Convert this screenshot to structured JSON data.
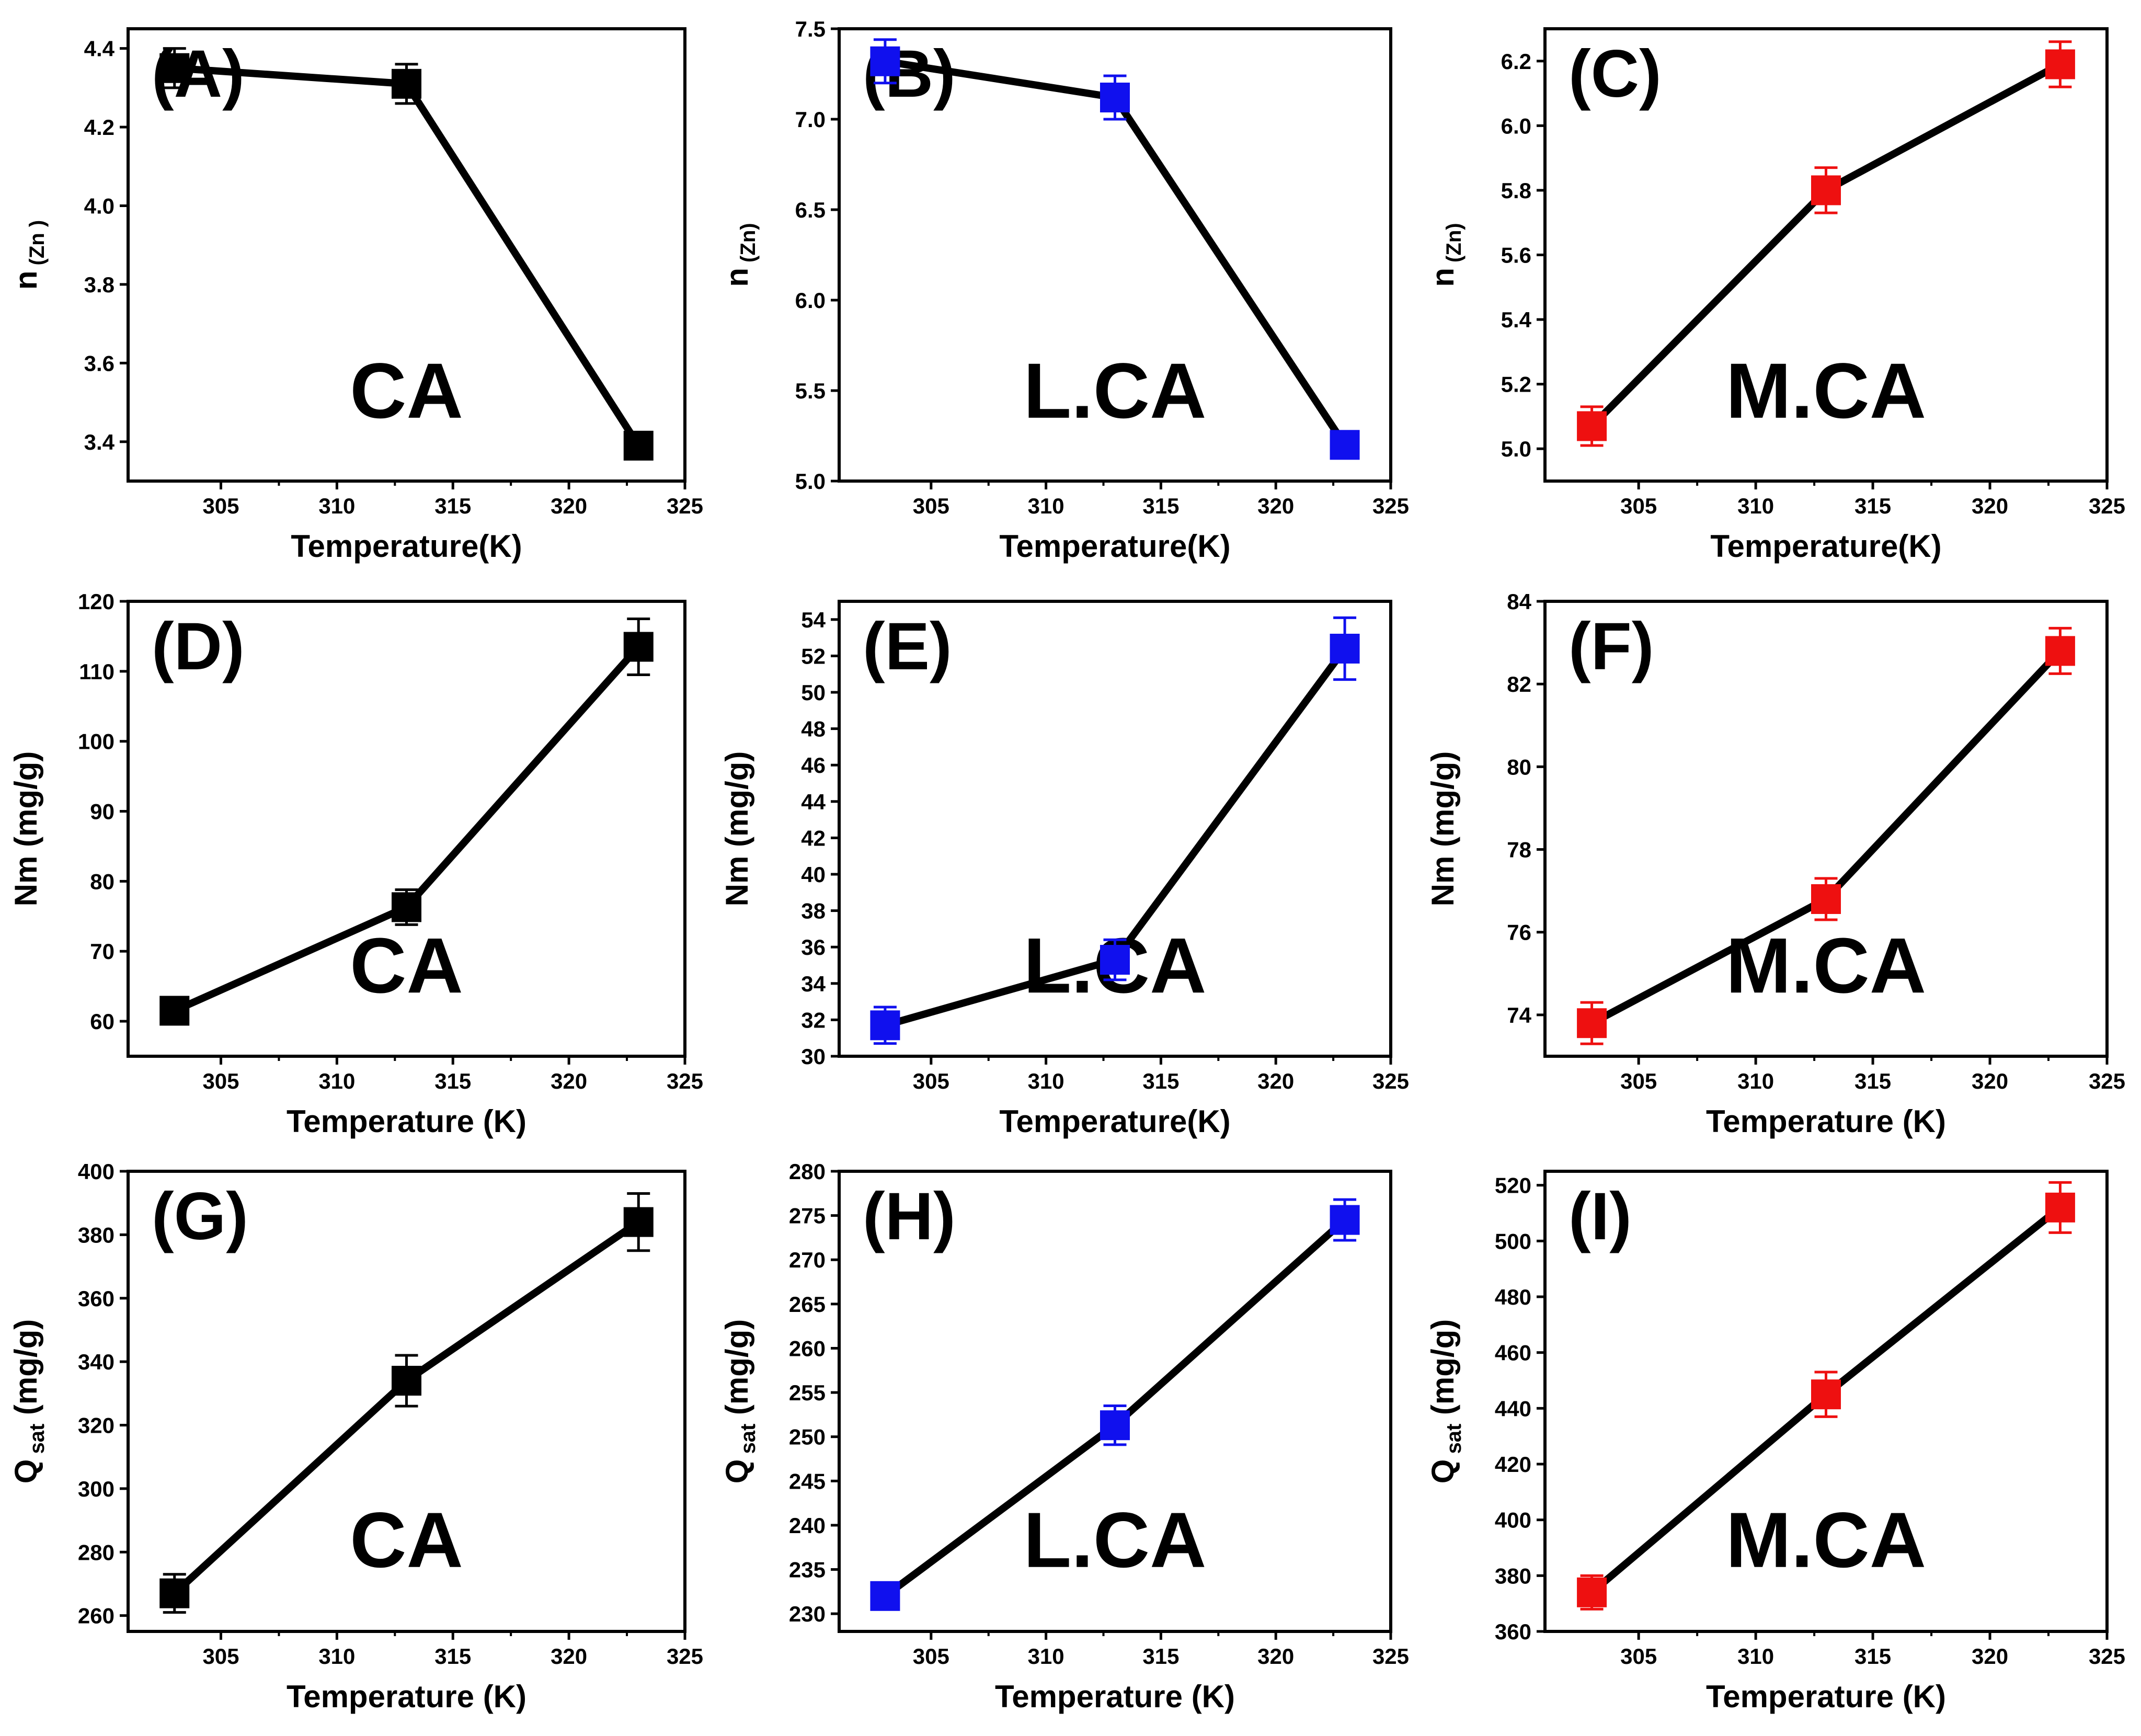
{
  "colors": {
    "CA": "#000000",
    "L.CA": "#1010ee",
    "M.CA": "#ee1010",
    "line": "#000000",
    "axis": "#000000"
  },
  "chart_data": [
    {
      "type": "line",
      "panel": "(A)",
      "sample": "CA",
      "color_key": "CA",
      "xlabel": "Temperature(K)",
      "ylabel_main": "n",
      "ylabel_sub": "(Zn )",
      "x": [
        303,
        313,
        323
      ],
      "values": [
        4.35,
        4.31,
        3.39
      ],
      "errors": [
        0.05,
        0.05,
        0.02
      ],
      "xlim": [
        301,
        325
      ],
      "ylim": [
        3.3,
        4.45
      ],
      "xticks": [
        305,
        310,
        315,
        320,
        325
      ],
      "yticks": [
        3.4,
        3.6,
        3.8,
        4.0,
        4.2,
        4.4
      ],
      "ydec": 1
    },
    {
      "type": "line",
      "panel": "(B)",
      "sample": "L.CA",
      "color_key": "L.CA",
      "xlabel": "Temperature(K)",
      "ylabel_main": "n",
      "ylabel_sub": "(Zn)",
      "x": [
        303,
        313,
        323
      ],
      "values": [
        7.32,
        7.12,
        5.2
      ],
      "errors": [
        0.12,
        0.12,
        0.05
      ],
      "xlim": [
        301,
        325
      ],
      "ylim": [
        5.0,
        7.5
      ],
      "xticks": [
        305,
        310,
        315,
        320,
        325
      ],
      "yticks": [
        5.0,
        5.5,
        6.0,
        6.5,
        7.0,
        7.5
      ],
      "ydec": 1
    },
    {
      "type": "line",
      "panel": "(C)",
      "sample": "M.CA",
      "color_key": "M.CA",
      "xlabel": "Temperature(K)",
      "ylabel_main": "n",
      "ylabel_sub": "(Zn)",
      "x": [
        303,
        313,
        323
      ],
      "values": [
        5.07,
        5.8,
        6.19
      ],
      "errors": [
        0.06,
        0.07,
        0.07
      ],
      "xlim": [
        301,
        325
      ],
      "ylim": [
        4.9,
        6.3
      ],
      "xticks": [
        305,
        310,
        315,
        320,
        325
      ],
      "yticks": [
        5.0,
        5.2,
        5.4,
        5.6,
        5.8,
        6.0,
        6.2
      ],
      "ydec": 1
    },
    {
      "type": "line",
      "panel": "(D)",
      "sample": "CA",
      "color_key": "CA",
      "xlabel": "Temperature (K)",
      "ylabel_main": "Nm (mg/g)",
      "ylabel_sub": "",
      "x": [
        303,
        313,
        323
      ],
      "values": [
        61.5,
        76.3,
        113.5
      ],
      "errors": [
        1.5,
        2.5,
        4.0
      ],
      "xlim": [
        301,
        325
      ],
      "ylim": [
        55,
        120
      ],
      "xticks": [
        305,
        310,
        315,
        320,
        325
      ],
      "yticks": [
        60,
        70,
        80,
        90,
        100,
        110,
        120
      ],
      "ydec": 0
    },
    {
      "type": "line",
      "panel": "(E)",
      "sample": "L.CA",
      "color_key": "L.CA",
      "xlabel": "Temperature(K)",
      "ylabel_main": "Nm (mg/g)",
      "ylabel_sub": "",
      "x": [
        303,
        313,
        323
      ],
      "values": [
        31.7,
        35.3,
        52.4
      ],
      "errors": [
        1.0,
        1.1,
        1.7
      ],
      "xlim": [
        301,
        325
      ],
      "ylim": [
        30,
        55
      ],
      "xticks": [
        305,
        310,
        315,
        320,
        325
      ],
      "yticks": [
        30,
        32,
        34,
        36,
        38,
        40,
        42,
        44,
        46,
        48,
        50,
        52,
        54
      ],
      "ydec": 0
    },
    {
      "type": "line",
      "panel": "(F)",
      "sample": "M.CA",
      "color_key": "M.CA",
      "xlabel": "Temperature (K)",
      "ylabel_main": "Nm (mg/g)",
      "ylabel_sub": "",
      "x": [
        303,
        313,
        323
      ],
      "values": [
        73.8,
        76.8,
        82.8
      ],
      "errors": [
        0.5,
        0.5,
        0.55
      ],
      "xlim": [
        301,
        325
      ],
      "ylim": [
        73,
        84
      ],
      "xticks": [
        305,
        310,
        315,
        320,
        325
      ],
      "yticks": [
        74,
        76,
        78,
        80,
        82,
        84
      ],
      "ydec": 0
    },
    {
      "type": "line",
      "panel": "(G)",
      "sample": "CA",
      "color_key": "CA",
      "xlabel": "Temperature (K)",
      "ylabel_main": "Q",
      "ylabel_sub": "sat",
      "ylabel_unit": " (mg/g)",
      "x": [
        303,
        313,
        323
      ],
      "values": [
        267,
        334,
        384
      ],
      "errors": [
        6,
        8,
        9
      ],
      "xlim": [
        301,
        325
      ],
      "ylim": [
        255,
        400
      ],
      "xticks": [
        305,
        310,
        315,
        320,
        325
      ],
      "yticks": [
        260,
        280,
        300,
        320,
        340,
        360,
        380,
        400
      ],
      "ydec": 0
    },
    {
      "type": "line",
      "panel": "(H)",
      "sample": "L.CA",
      "color_key": "L.CA",
      "xlabel": "Temperature (K)",
      "ylabel_main": "Q",
      "ylabel_sub": "sat",
      "ylabel_unit": " (mg/g)",
      "x": [
        303,
        313,
        323
      ],
      "values": [
        232,
        251.3,
        274.5
      ],
      "errors": [
        1.5,
        2.2,
        2.3
      ],
      "xlim": [
        301,
        325
      ],
      "ylim": [
        228,
        280
      ],
      "xticks": [
        305,
        310,
        315,
        320,
        325
      ],
      "yticks": [
        230,
        235,
        240,
        245,
        250,
        255,
        260,
        265,
        270,
        275,
        280
      ],
      "ydec": 0
    },
    {
      "type": "line",
      "panel": "(I)",
      "sample": "M.CA",
      "color_key": "M.CA",
      "xlabel": "Temperature (K)",
      "ylabel_main": "Q",
      "ylabel_sub": "sat",
      "ylabel_unit": " (mg/g)",
      "x": [
        303,
        313,
        323
      ],
      "values": [
        374,
        445,
        512
      ],
      "errors": [
        6,
        8,
        9
      ],
      "xlim": [
        301,
        325
      ],
      "ylim": [
        360,
        525
      ],
      "xticks": [
        305,
        310,
        315,
        320,
        325
      ],
      "yticks": [
        360,
        380,
        400,
        420,
        440,
        460,
        480,
        500,
        520
      ],
      "ydec": 0
    }
  ]
}
